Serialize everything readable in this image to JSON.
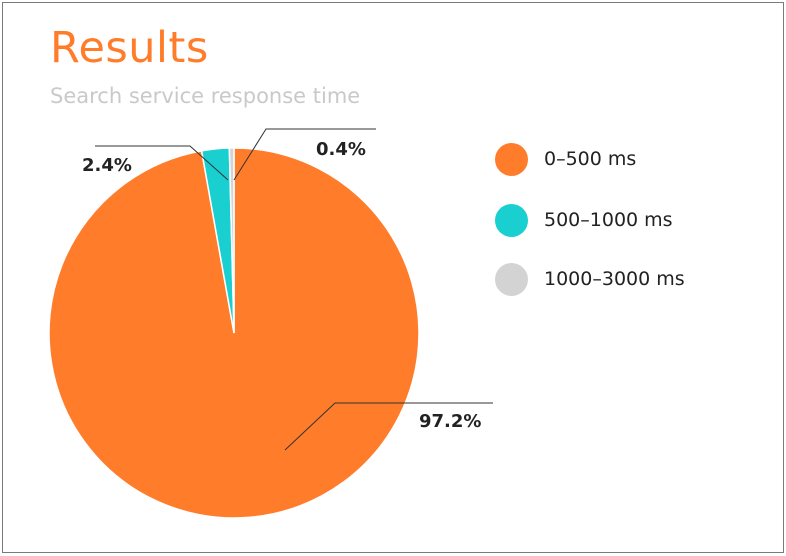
{
  "header": {
    "title": "Results",
    "subtitle": "Search service response time"
  },
  "chart_data": {
    "type": "pie",
    "title": "Results",
    "subtitle": "Search service response time",
    "categories": [
      "0–500 ms",
      "500–1000 ms",
      "1000–3000 ms"
    ],
    "values": [
      97.2,
      2.4,
      0.4
    ],
    "labels": [
      "97.2%",
      "2.4%",
      "0.4%"
    ],
    "colors": [
      "#FF7C2A",
      "#1ACFD0",
      "#D3D3D3"
    ],
    "legend": "right"
  }
}
